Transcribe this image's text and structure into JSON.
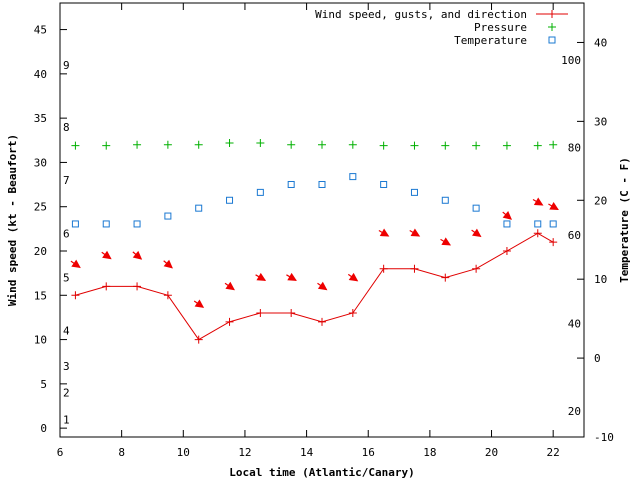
{
  "chart_data": {
    "type": "line",
    "xlabel": "Local time (Atlantic/Canary)",
    "ylabel": "Wind speed (kt - Beaufort)",
    "y2label": "Temperature (C - F)",
    "xlim": [
      6,
      23
    ],
    "ylim": [
      -1,
      48
    ],
    "y2lim": [
      -10,
      45
    ],
    "x_ticks": [
      6,
      8,
      10,
      12,
      14,
      16,
      18,
      20,
      22
    ],
    "y_ticks": [
      0,
      5,
      10,
      15,
      20,
      25,
      30,
      35,
      40,
      45
    ],
    "y2_ticks": [
      -10,
      0,
      10,
      20,
      30,
      40
    ],
    "beaufort_labels": [
      {
        "label": "1",
        "kt": 1
      },
      {
        "label": "2",
        "kt": 4
      },
      {
        "label": "3",
        "kt": 7
      },
      {
        "label": "4",
        "kt": 11
      },
      {
        "label": "5",
        "kt": 17
      },
      {
        "label": "6",
        "kt": 22
      },
      {
        "label": "7",
        "kt": 28
      },
      {
        "label": "8",
        "kt": 34
      },
      {
        "label": "9",
        "kt": 41
      }
    ],
    "fahrenheit_labels": [
      {
        "label": "20",
        "c": -6.7
      },
      {
        "label": "40",
        "c": 4.4
      },
      {
        "label": "60",
        "c": 15.6
      },
      {
        "label": "80",
        "c": 26.7
      },
      {
        "label": "100",
        "c": 37.8
      }
    ],
    "legend": {
      "position": "top-right",
      "entries": [
        "Wind speed, gusts, and direction",
        "Pressure",
        "Temperature"
      ]
    },
    "colors": {
      "wind": "#e00000",
      "pressure": "#00b000",
      "temperature": "#1a78d2",
      "arrow": "#ee0000"
    },
    "series": [
      {
        "name": "Wind speed, gusts, and direction",
        "axis": "left",
        "x": [
          6.5,
          7.5,
          8.5,
          9.5,
          10.5,
          11.5,
          12.5,
          13.5,
          14.5,
          15.5,
          16.5,
          17.5,
          18.5,
          19.5,
          20.5,
          21.5,
          22
        ],
        "values": [
          15,
          16,
          16,
          15,
          10,
          12,
          13,
          13,
          12,
          13,
          18,
          18,
          17,
          18,
          20,
          22,
          21
        ]
      },
      {
        "name": "Pressure",
        "axis": "left",
        "x": [
          6.5,
          7.5,
          8.5,
          9.5,
          10.5,
          11.5,
          12.5,
          13.5,
          14.5,
          15.5,
          16.5,
          17.5,
          18.5,
          19.5,
          20.5,
          21.5,
          22
        ],
        "values": [
          31.9,
          31.9,
          32.0,
          32.0,
          32.0,
          32.2,
          32.2,
          32.0,
          32.0,
          32.0,
          31.9,
          31.9,
          31.9,
          31.9,
          31.9,
          31.9,
          32.0
        ]
      },
      {
        "name": "Temperature",
        "axis": "right",
        "x": [
          6.5,
          7.5,
          8.5,
          9.5,
          10.5,
          11.5,
          12.5,
          13.5,
          14.5,
          15.5,
          16.5,
          17.5,
          18.5,
          19.5,
          20.5,
          21.5,
          22
        ],
        "values": [
          17,
          17,
          17,
          18,
          19,
          20,
          21,
          22,
          22,
          23,
          22,
          21,
          20,
          19,
          17,
          17,
          17
        ]
      }
    ],
    "wind_direction": {
      "x": [
        6.5,
        7.5,
        8.5,
        9.5,
        10.5,
        11.5,
        12.5,
        13.5,
        14.5,
        15.5,
        16.5,
        17.5,
        18.5,
        19.5,
        20.5,
        21.5,
        22
      ],
      "kt": [
        18.5,
        19.5,
        19.5,
        18.5,
        14.0,
        16.0,
        17.0,
        17.0,
        16.0,
        17.0,
        22.0,
        22.0,
        21.0,
        22.0,
        24.0,
        25.5,
        25.0
      ],
      "angle_deg": [
        35,
        35,
        40,
        40,
        35,
        35,
        30,
        30,
        35,
        35,
        30,
        30,
        30,
        35,
        40,
        30,
        30
      ]
    }
  }
}
